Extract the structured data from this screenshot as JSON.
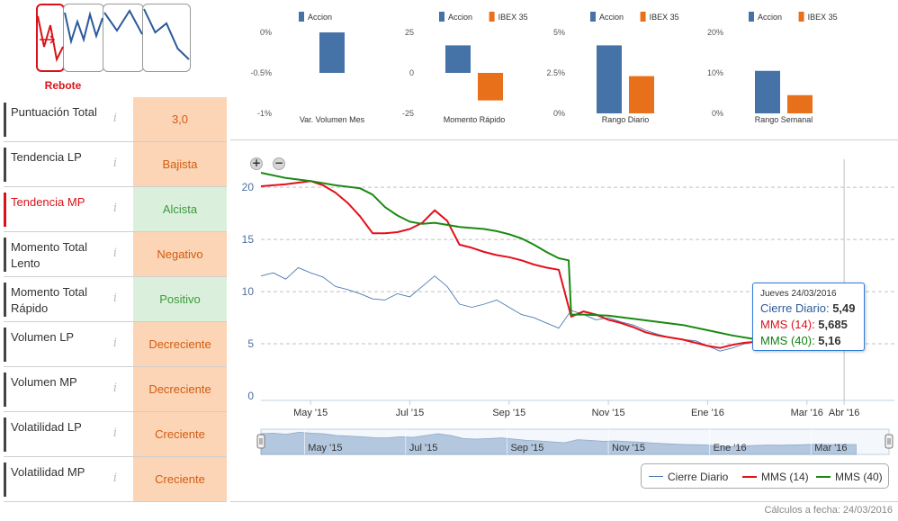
{
  "pattern": {
    "label": "Rebote",
    "thumb_series": [
      [
        10,
        44,
        20,
        58,
        44
      ],
      [
        6,
        38,
        16,
        36,
        8,
        32,
        12
      ],
      [
        6,
        26,
        4,
        30
      ],
      [
        2,
        28,
        18,
        46,
        58
      ]
    ]
  },
  "indicators": [
    {
      "name": "Puntuación Total",
      "value": "3,0",
      "style": "orange",
      "highlight": false
    },
    {
      "name": "Tendencia LP",
      "value": "Bajista",
      "style": "orange",
      "highlight": false
    },
    {
      "name": "Tendencia MP",
      "value": "Alcista",
      "style": "green",
      "highlight": true
    },
    {
      "name": "Momento Total Lento",
      "value": "Negativo",
      "style": "orange",
      "highlight": false
    },
    {
      "name": "Momento Total Rápido",
      "value": "Positivo",
      "style": "green",
      "highlight": false
    },
    {
      "name": "Volumen LP",
      "value": "Decreciente",
      "style": "orange",
      "highlight": false
    },
    {
      "name": "Volumen MP",
      "value": "Decreciente",
      "style": "orange",
      "highlight": false
    },
    {
      "name": "Volatilidad LP",
      "value": "Creciente",
      "style": "orange",
      "highlight": false
    },
    {
      "name": "Volatilidad MP",
      "value": "Creciente",
      "style": "orange",
      "highlight": false
    }
  ],
  "colors": {
    "accion": "#4572a7",
    "ibex": "#e8701a",
    "close": "#4b79b4",
    "mms14": "#e3101b",
    "mms40": "#1a8a12",
    "navigator": "#a8bfd9"
  },
  "footer": {
    "calc_date": "Cálculos a fecha: 24/03/2016"
  },
  "chart_data": [
    {
      "type": "bar",
      "id": "volumen",
      "title": "Var. Volumen Mes",
      "legend": [
        "Accion"
      ],
      "categories": [
        "Var. Volumen Mes"
      ],
      "series": [
        {
          "name": "Accion",
          "values": [
            -0.5
          ]
        }
      ],
      "ylim": [
        -1,
        0
      ],
      "yticks": [
        "0%",
        "-0.5%",
        "-1%"
      ],
      "ytick_values": [
        0,
        -0.5,
        -1
      ]
    },
    {
      "type": "bar",
      "id": "momento",
      "title": "Momento Rápido",
      "legend": [
        "Accion",
        "IBEX 35"
      ],
      "categories": [
        "Momento Rápido"
      ],
      "series": [
        {
          "name": "Accion",
          "values": [
            17
          ]
        },
        {
          "name": "IBEX 35",
          "values": [
            -17
          ]
        }
      ],
      "ylim": [
        -25,
        25
      ],
      "yticks": [
        "25",
        "0",
        "-25"
      ],
      "ytick_values": [
        25,
        0,
        -25
      ]
    },
    {
      "type": "bar",
      "id": "rango-diario",
      "title": "Rango Diario",
      "legend": [
        "Accion",
        "IBEX 35"
      ],
      "categories": [
        "Rango Diario"
      ],
      "series": [
        {
          "name": "Accion",
          "values": [
            4.2
          ]
        },
        {
          "name": "IBEX 35",
          "values": [
            2.3
          ]
        }
      ],
      "ylim": [
        0,
        5
      ],
      "yticks": [
        "5%",
        "2.5%",
        "0%"
      ],
      "ytick_values": [
        5,
        2.5,
        0
      ]
    },
    {
      "type": "bar",
      "id": "rango-semanal",
      "title": "Rango Semanal",
      "legend": [
        "Accion",
        "IBEX 35"
      ],
      "categories": [
        "Rango Semanal"
      ],
      "series": [
        {
          "name": "Accion",
          "values": [
            10.5
          ]
        },
        {
          "name": "IBEX 35",
          "values": [
            4.5
          ]
        }
      ],
      "ylim": [
        0,
        20
      ],
      "yticks": [
        "20%",
        "10%",
        "0%"
      ],
      "ytick_values": [
        20,
        10,
        0
      ]
    },
    {
      "type": "line",
      "id": "precio",
      "ylim": [
        0,
        22
      ],
      "yticks": [
        0,
        5,
        10,
        15,
        20
      ],
      "xlim": [
        0,
        12.4
      ],
      "x_ticks": [
        {
          "label": "May '15",
          "x": 1
        },
        {
          "label": "Jul '15",
          "x": 3
        },
        {
          "label": "Sep '15",
          "x": 5
        },
        {
          "label": "Nov '15",
          "x": 7
        },
        {
          "label": "Ene '16",
          "x": 9
        },
        {
          "label": "Mar '16",
          "x": 11
        },
        {
          "label": "Abr '16",
          "x": 11.75
        }
      ],
      "navigator_ticks": [
        "May '15",
        "Jul '15",
        "Sep '15",
        "Nov '15",
        "Ene '16",
        "Mar '16"
      ],
      "series": [
        {
          "name": "Cierre Diario",
          "x": [
            0,
            0.25,
            0.5,
            0.75,
            1.0,
            1.25,
            1.5,
            1.75,
            2.0,
            2.25,
            2.5,
            2.75,
            3.0,
            3.25,
            3.5,
            3.75,
            4.0,
            4.25,
            4.5,
            4.75,
            5.0,
            5.25,
            5.5,
            5.75,
            6.0,
            6.25,
            6.5,
            6.75,
            7.0,
            7.25,
            7.5,
            7.75,
            8.0,
            8.25,
            8.5,
            8.75,
            9.0,
            9.25,
            9.5,
            9.75,
            10.0,
            10.25,
            10.5,
            10.75,
            11.0,
            11.25,
            11.5,
            11.75
          ],
          "values": [
            11.5,
            11.8,
            11.2,
            12.3,
            11.8,
            11.4,
            10.5,
            10.2,
            9.8,
            9.3,
            9.2,
            9.8,
            9.5,
            10.5,
            11.5,
            10.5,
            8.8,
            8.5,
            8.8,
            9.2,
            8.5,
            7.8,
            7.5,
            7.0,
            6.5,
            8.2,
            7.8,
            7.3,
            7.5,
            7.1,
            6.8,
            6.3,
            5.9,
            5.6,
            5.4,
            5.3,
            4.8,
            4.3,
            4.6,
            5.0,
            5.2,
            5.1,
            5.3,
            5.4,
            5.6,
            5.5,
            5.5,
            5.49
          ]
        },
        {
          "name": "MMS (14)",
          "x": [
            0,
            0.5,
            1.0,
            1.25,
            1.5,
            1.75,
            2.0,
            2.25,
            2.5,
            2.75,
            3.0,
            3.25,
            3.5,
            3.75,
            4.0,
            4.25,
            4.5,
            4.75,
            5.0,
            5.25,
            5.5,
            5.75,
            6.0,
            6.25,
            6.5,
            6.75,
            7.0,
            7.25,
            7.5,
            7.75,
            8.0,
            8.25,
            8.5,
            8.75,
            9.0,
            9.25,
            9.5,
            9.75,
            10.0,
            10.25,
            10.5,
            10.75,
            11.0,
            11.25,
            11.5,
            11.75
          ],
          "values": [
            20.1,
            20.3,
            20.6,
            20.2,
            19.5,
            18.5,
            17.2,
            15.6,
            15.6,
            15.7,
            16.0,
            16.6,
            17.8,
            16.8,
            14.5,
            14.2,
            13.8,
            13.5,
            13.3,
            13.0,
            12.6,
            12.3,
            12.1,
            7.6,
            8.1,
            7.8,
            7.3,
            7.0,
            6.6,
            6.1,
            5.8,
            5.6,
            5.4,
            5.1,
            4.8,
            4.6,
            4.9,
            5.1,
            5.2,
            5.0,
            4.9,
            5.2,
            5.4,
            5.6,
            5.7,
            5.685
          ]
        },
        {
          "name": "MMS (40)",
          "x": [
            0,
            0.5,
            1.0,
            1.5,
            2.0,
            2.25,
            2.5,
            2.75,
            3.0,
            3.25,
            3.5,
            3.75,
            4.0,
            4.25,
            4.5,
            4.75,
            5.0,
            5.25,
            5.5,
            5.75,
            6.0,
            6.2,
            6.25,
            6.5,
            7.0,
            7.5,
            8.0,
            8.5,
            9.0,
            9.5,
            10.0,
            10.5,
            11.0,
            11.5,
            11.75
          ],
          "values": [
            21.4,
            20.9,
            20.6,
            20.2,
            19.9,
            19.3,
            18.1,
            17.3,
            16.7,
            16.5,
            16.6,
            16.4,
            16.2,
            16.1,
            16.0,
            15.8,
            15.5,
            15.1,
            14.5,
            13.8,
            13.2,
            13.0,
            7.8,
            7.8,
            7.7,
            7.4,
            7.1,
            6.8,
            6.3,
            5.8,
            5.4,
            5.2,
            5.1,
            5.1,
            5.16
          ]
        }
      ],
      "tooltip": {
        "date": "Jueves 24/03/2016",
        "rows": [
          {
            "name": "Cierre Diario",
            "value": "5,49"
          },
          {
            "name": "MMS (14)",
            "value": "5,685"
          },
          {
            "name": "MMS (40)",
            "value": "5,16"
          }
        ]
      },
      "legend": [
        "Cierre Diario",
        "MMS (14)",
        "MMS (40)"
      ]
    }
  ]
}
